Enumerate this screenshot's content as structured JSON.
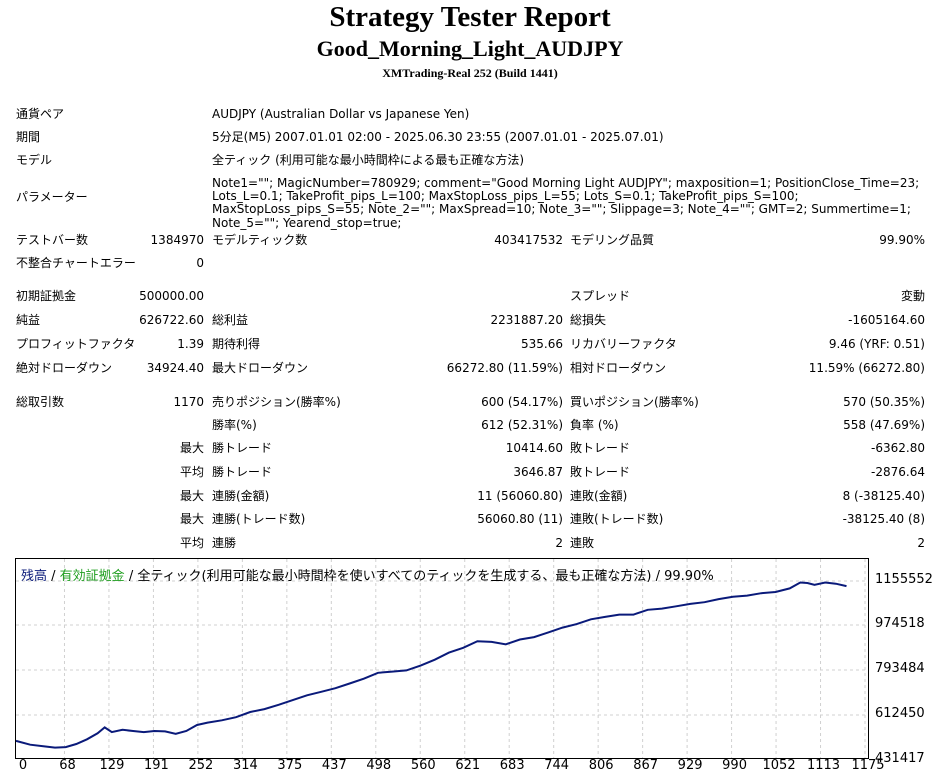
{
  "header": {
    "title": "Strategy Tester Report",
    "subtitle": "Good_Morning_Light_AUDJPY",
    "build": "XMTrading-Real 252 (Build 1441)"
  },
  "info": {
    "symbol_label": "通貨ペア",
    "symbol_value": "AUDJPY (Australian Dollar vs Japanese Yen)",
    "period_label": "期間",
    "period_value": "5分足(M5) 2007.01.01 02:00 - 2025.06.30 23:55 (2007.01.01 - 2025.07.01)",
    "model_label": "モデル",
    "model_value": "全ティック (利用可能な最小時間枠による最も正確な方法)",
    "params_label": "パラメーター",
    "params_value": "Note1=\"\"; MagicNumber=780929; comment=\"Good Morning Light AUDJPY\"; maxposition=1; PositionClose_Time=23; Lots_L=0.1; TakeProfit_pips_L=100; MaxStopLoss_pips_L=55; Lots_S=0.1; TakeProfit_pips_S=100; MaxStopLoss_pips_S=55; Note_2=\"\"; MaxSpread=10; Note_3=\"\"; Slippage=3; Note_4=\"\"; GMT=2; Summertime=1; Note_5=\"\"; Yearend_stop=true;"
  },
  "stats": {
    "bars_label": "テストバー数",
    "bars": "1384970",
    "ticks_label": "モデルティック数",
    "ticks": "403417532",
    "quality_label": "モデリング品質",
    "quality": "99.90%",
    "mismatch_label": "不整合チャートエラー",
    "mismatch": "0",
    "deposit_label": "初期証拠金",
    "deposit": "500000.00",
    "spread_label": "スプレッド",
    "spread": "変動",
    "net_label": "純益",
    "net": "626722.60",
    "gross_profit_label": "総利益",
    "gross_profit": "2231887.20",
    "gross_loss_label": "総損失",
    "gross_loss": "-1605164.60",
    "pf_label": "プロフィットファクタ",
    "pf": "1.39",
    "expected_label": "期待利得",
    "expected": "535.66",
    "recovery_label": "リカバリーファクタ",
    "recovery": "9.46 (YRF: 0.51)",
    "abs_dd_label": "絶対ドローダウン",
    "abs_dd": "34924.40",
    "max_dd_label": "最大ドローダウン",
    "max_dd": "66272.80 (11.59%)",
    "rel_dd_label": "相対ドローダウン",
    "rel_dd": "11.59% (66272.80)",
    "trades_label": "総取引数",
    "trades": "1170",
    "short_label": "売りポジション(勝率%)",
    "short": "600 (54.17%)",
    "long_label": "買いポジション(勝率%)",
    "long": "570 (50.35%)",
    "win_pct_label": "勝率(%)",
    "win_pct": "612 (52.31%)",
    "loss_pct_label": "負率 (%)",
    "loss_pct": "558 (47.69%)",
    "max_word": "最大",
    "avg_word": "平均",
    "win_trade_label": "勝トレード",
    "loss_trade_label": "敗トレード",
    "largest_win": "10414.60",
    "largest_loss": "-6362.80",
    "avg_win": "3646.87",
    "avg_loss": "-2876.64",
    "cons_win_money_label": "連勝(金額)",
    "cons_win_money": "11 (56060.80)",
    "cons_loss_money_label": "連敗(金額)",
    "cons_loss_money": "8 (-38125.40)",
    "cons_win_count_label": "連勝(トレード数)",
    "cons_win_count": "56060.80 (11)",
    "cons_loss_count_label": "連敗(トレード数)",
    "cons_loss_count": "-38125.40 (8)",
    "avg_cons_win_label": "連勝",
    "avg_cons_win": "2",
    "avg_cons_loss_label": "連敗",
    "avg_cons_loss": "2"
  },
  "chart_data": {
    "type": "line",
    "legend": {
      "balance": "残高",
      "sep1": " / ",
      "equity": "有効証拠金",
      "sep2": " / 全ティック(利用可能な最小時間枠を使いすべてのティックを生成する、最も正確な方法) / 99.90%"
    },
    "colors": {
      "balance": "#0a1a7a",
      "equity": "#1f9e1f",
      "grid": "#d0d0d0"
    },
    "y_ticks": [
      "1155552",
      "974518",
      "793484",
      "612450",
      "431417"
    ],
    "x_ticks": [
      "0",
      "68",
      "129",
      "191",
      "252",
      "314",
      "375",
      "437",
      "498",
      "560",
      "621",
      "683",
      "744",
      "806",
      "867",
      "929",
      "990",
      "1052",
      "1113",
      "1175"
    ],
    "xlim": [
      0,
      1175
    ],
    "ylim": [
      431417,
      1155552
    ],
    "series": [
      {
        "x": [
          0,
          20,
          40,
          55,
          70,
          85,
          100,
          115,
          125,
          135,
          150,
          165,
          180,
          195,
          210,
          225,
          240,
          255,
          270,
          290,
          310,
          330,
          350,
          370,
          390,
          410,
          430,
          450,
          470,
          490,
          510,
          530,
          550,
          570,
          590,
          610,
          630,
          650,
          670,
          690,
          710,
          730,
          750,
          770,
          790,
          810,
          830,
          850,
          870,
          890,
          910,
          930,
          950,
          970,
          990,
          1010,
          1030,
          1050,
          1070,
          1090,
          1105,
          1115,
          1125,
          1140,
          1155,
          1170
        ],
        "y": [
          478000,
          462000,
          455000,
          450000,
          452000,
          465000,
          485000,
          510000,
          535000,
          515000,
          525000,
          520000,
          515000,
          520000,
          518000,
          508000,
          520000,
          545000,
          555000,
          565000,
          578000,
          600000,
          612000,
          630000,
          650000,
          670000,
          685000,
          700000,
          720000,
          740000,
          765000,
          770000,
          775000,
          795000,
          820000,
          850000,
          870000,
          898000,
          895000,
          885000,
          905000,
          915000,
          935000,
          955000,
          970000,
          990000,
          1000000,
          1010000,
          1010000,
          1030000,
          1035000,
          1045000,
          1055000,
          1062000,
          1075000,
          1085000,
          1090000,
          1100000,
          1105000,
          1120000,
          1145000,
          1143000,
          1135000,
          1145000,
          1140000,
          1130000
        ]
      }
    ]
  }
}
